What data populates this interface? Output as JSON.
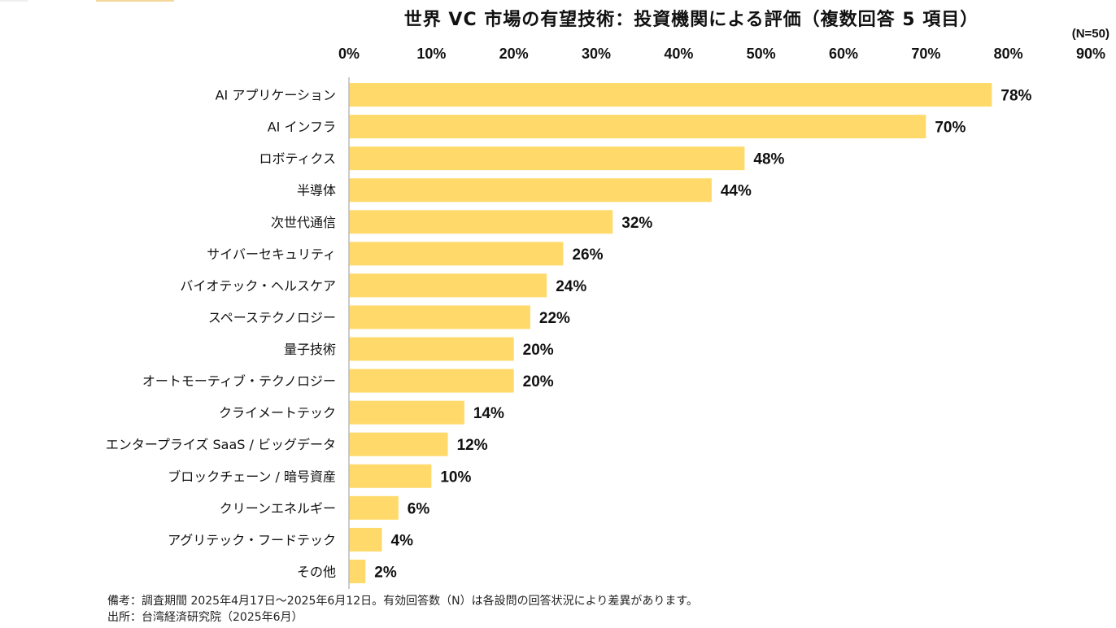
{
  "title": "世界 VC 市場の有望技術：投資機関による評価（複数回答 5 項目）",
  "n_label": "(N=50)",
  "notes": {
    "remark": "備考：調査期間 2025年4月17日～2025年6月12日。有効回答数（N）は各設問の回答状況により差異があります。",
    "source": "出所：台湾経済研究院（2025年6月）"
  },
  "colors": {
    "bar": "#FFDA6B",
    "axis": "#BBBBBB",
    "text": "#111111"
  },
  "chart_data": {
    "type": "bar",
    "orientation": "horizontal",
    "title": "世界 VC 市場の有望技術：投資機関による評価（複数回答 5 項目）",
    "xlim": [
      0,
      90
    ],
    "x_ticks": [
      "0%",
      "10%",
      "20%",
      "30%",
      "40%",
      "50%",
      "60%",
      "70%",
      "80%",
      "90%"
    ],
    "tick_position": "top",
    "grid": false,
    "categories": [
      "AI アプリケーション",
      "AI インフラ",
      "ロボティクス",
      "半導体",
      "次世代通信",
      "サイバーセキュリティ",
      "バイオテック・ヘルスケア",
      "スペーステクノロジー",
      "量子技術",
      "オートモーティブ・テクノロジー",
      "クライメートテック",
      "エンタープライズ SaaS / ビッグデータ",
      "ブロックチェーン / 暗号資産",
      "クリーンエネルギー",
      "アグリテック・フードテック",
      "その他"
    ],
    "values": [
      78,
      70,
      48,
      44,
      32,
      26,
      24,
      22,
      20,
      20,
      14,
      12,
      10,
      6,
      4,
      2
    ],
    "value_labels": [
      "78%",
      "70%",
      "48%",
      "44%",
      "32%",
      "26%",
      "24%",
      "22%",
      "20%",
      "20%",
      "14%",
      "12%",
      "10%",
      "6%",
      "4%",
      "2%"
    ]
  }
}
